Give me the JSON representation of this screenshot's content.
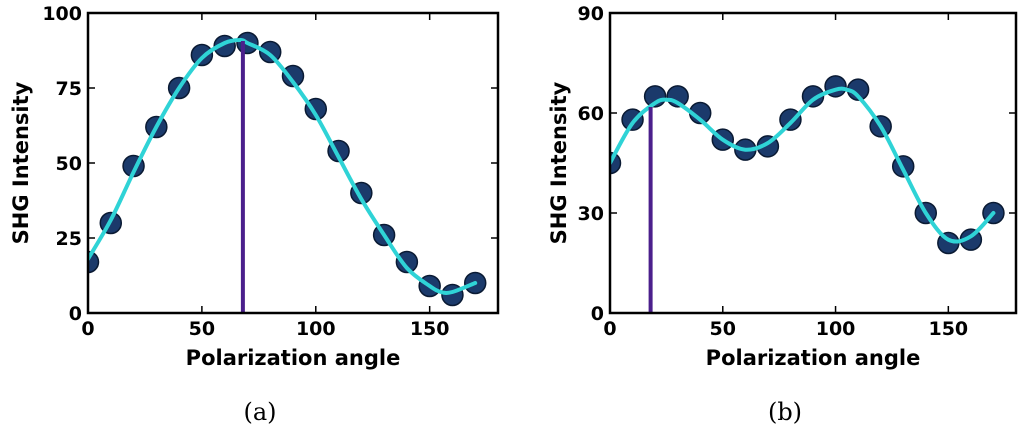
{
  "chart_data": [
    {
      "type": "scatter",
      "caption": "(a)",
      "xlabel": "Polarization angle",
      "ylabel": "SHG Intensity",
      "xlim": [
        0,
        180
      ],
      "ylim": [
        0,
        100
      ],
      "xticks": [
        "0",
        "50",
        "100",
        "150"
      ],
      "xtick_values": [
        0,
        50,
        100,
        150
      ],
      "yticks": [
        "0",
        "25",
        "50",
        "75",
        "100"
      ],
      "ytick_values": [
        0,
        25,
        50,
        75,
        100
      ],
      "series": [
        {
          "kind": "points",
          "x": [
            0,
            10,
            20,
            30,
            40,
            50,
            60,
            70,
            80,
            90,
            100,
            110,
            120,
            130,
            140,
            150,
            160,
            170
          ],
          "y": [
            17,
            30,
            49,
            62,
            75,
            86,
            89,
            90,
            87,
            79,
            68,
            54,
            40,
            26,
            17,
            9,
            6,
            10
          ]
        },
        {
          "kind": "fit",
          "x": [
            0,
            10,
            20,
            30,
            40,
            50,
            60,
            67,
            70,
            80,
            90,
            100,
            110,
            120,
            130,
            140,
            150,
            155,
            160,
            170
          ],
          "y": [
            18,
            31,
            47,
            62,
            75,
            85,
            90,
            91,
            90,
            86,
            77,
            66,
            52,
            38,
            26,
            15,
            9,
            7,
            7,
            10
          ]
        }
      ],
      "vline": {
        "x": 68
      },
      "colors": {
        "points": "#1b3a6b",
        "point_edge": "#0a1a33",
        "fit": "#2fd3d6",
        "vline": "#4b1f8c"
      }
    },
    {
      "type": "scatter",
      "caption": "(b)",
      "xlabel": "Polarization angle",
      "ylabel": "SHG Intensity",
      "xlim": [
        0,
        180
      ],
      "ylim": [
        0,
        90
      ],
      "xticks": [
        "0",
        "50",
        "100",
        "150"
      ],
      "xtick_values": [
        0,
        50,
        100,
        150
      ],
      "yticks": [
        "0",
        "30",
        "60",
        "90"
      ],
      "ytick_values": [
        0,
        30,
        60,
        90
      ],
      "series": [
        {
          "kind": "points",
          "x": [
            0,
            10,
            20,
            30,
            40,
            50,
            60,
            70,
            80,
            90,
            100,
            110,
            120,
            130,
            140,
            150,
            160,
            170
          ],
          "y": [
            45,
            58,
            65,
            65,
            60,
            52,
            49,
            50,
            58,
            65,
            68,
            67,
            56,
            44,
            30,
            21,
            22,
            30
          ]
        },
        {
          "kind": "fit",
          "x": [
            0,
            10,
            20,
            25,
            30,
            40,
            50,
            60,
            70,
            80,
            90,
            100,
            105,
            110,
            120,
            130,
            140,
            150,
            160,
            170
          ],
          "y": [
            45,
            57,
            63,
            64,
            63,
            58,
            52,
            49,
            51,
            57,
            64,
            67,
            67,
            65,
            56,
            43,
            30,
            22,
            23,
            30
          ]
        }
      ],
      "vline": {
        "x": 18
      },
      "colors": {
        "points": "#1b3a6b",
        "point_edge": "#0a1a33",
        "fit": "#2fd3d6",
        "vline": "#4b1f8c"
      }
    }
  ]
}
